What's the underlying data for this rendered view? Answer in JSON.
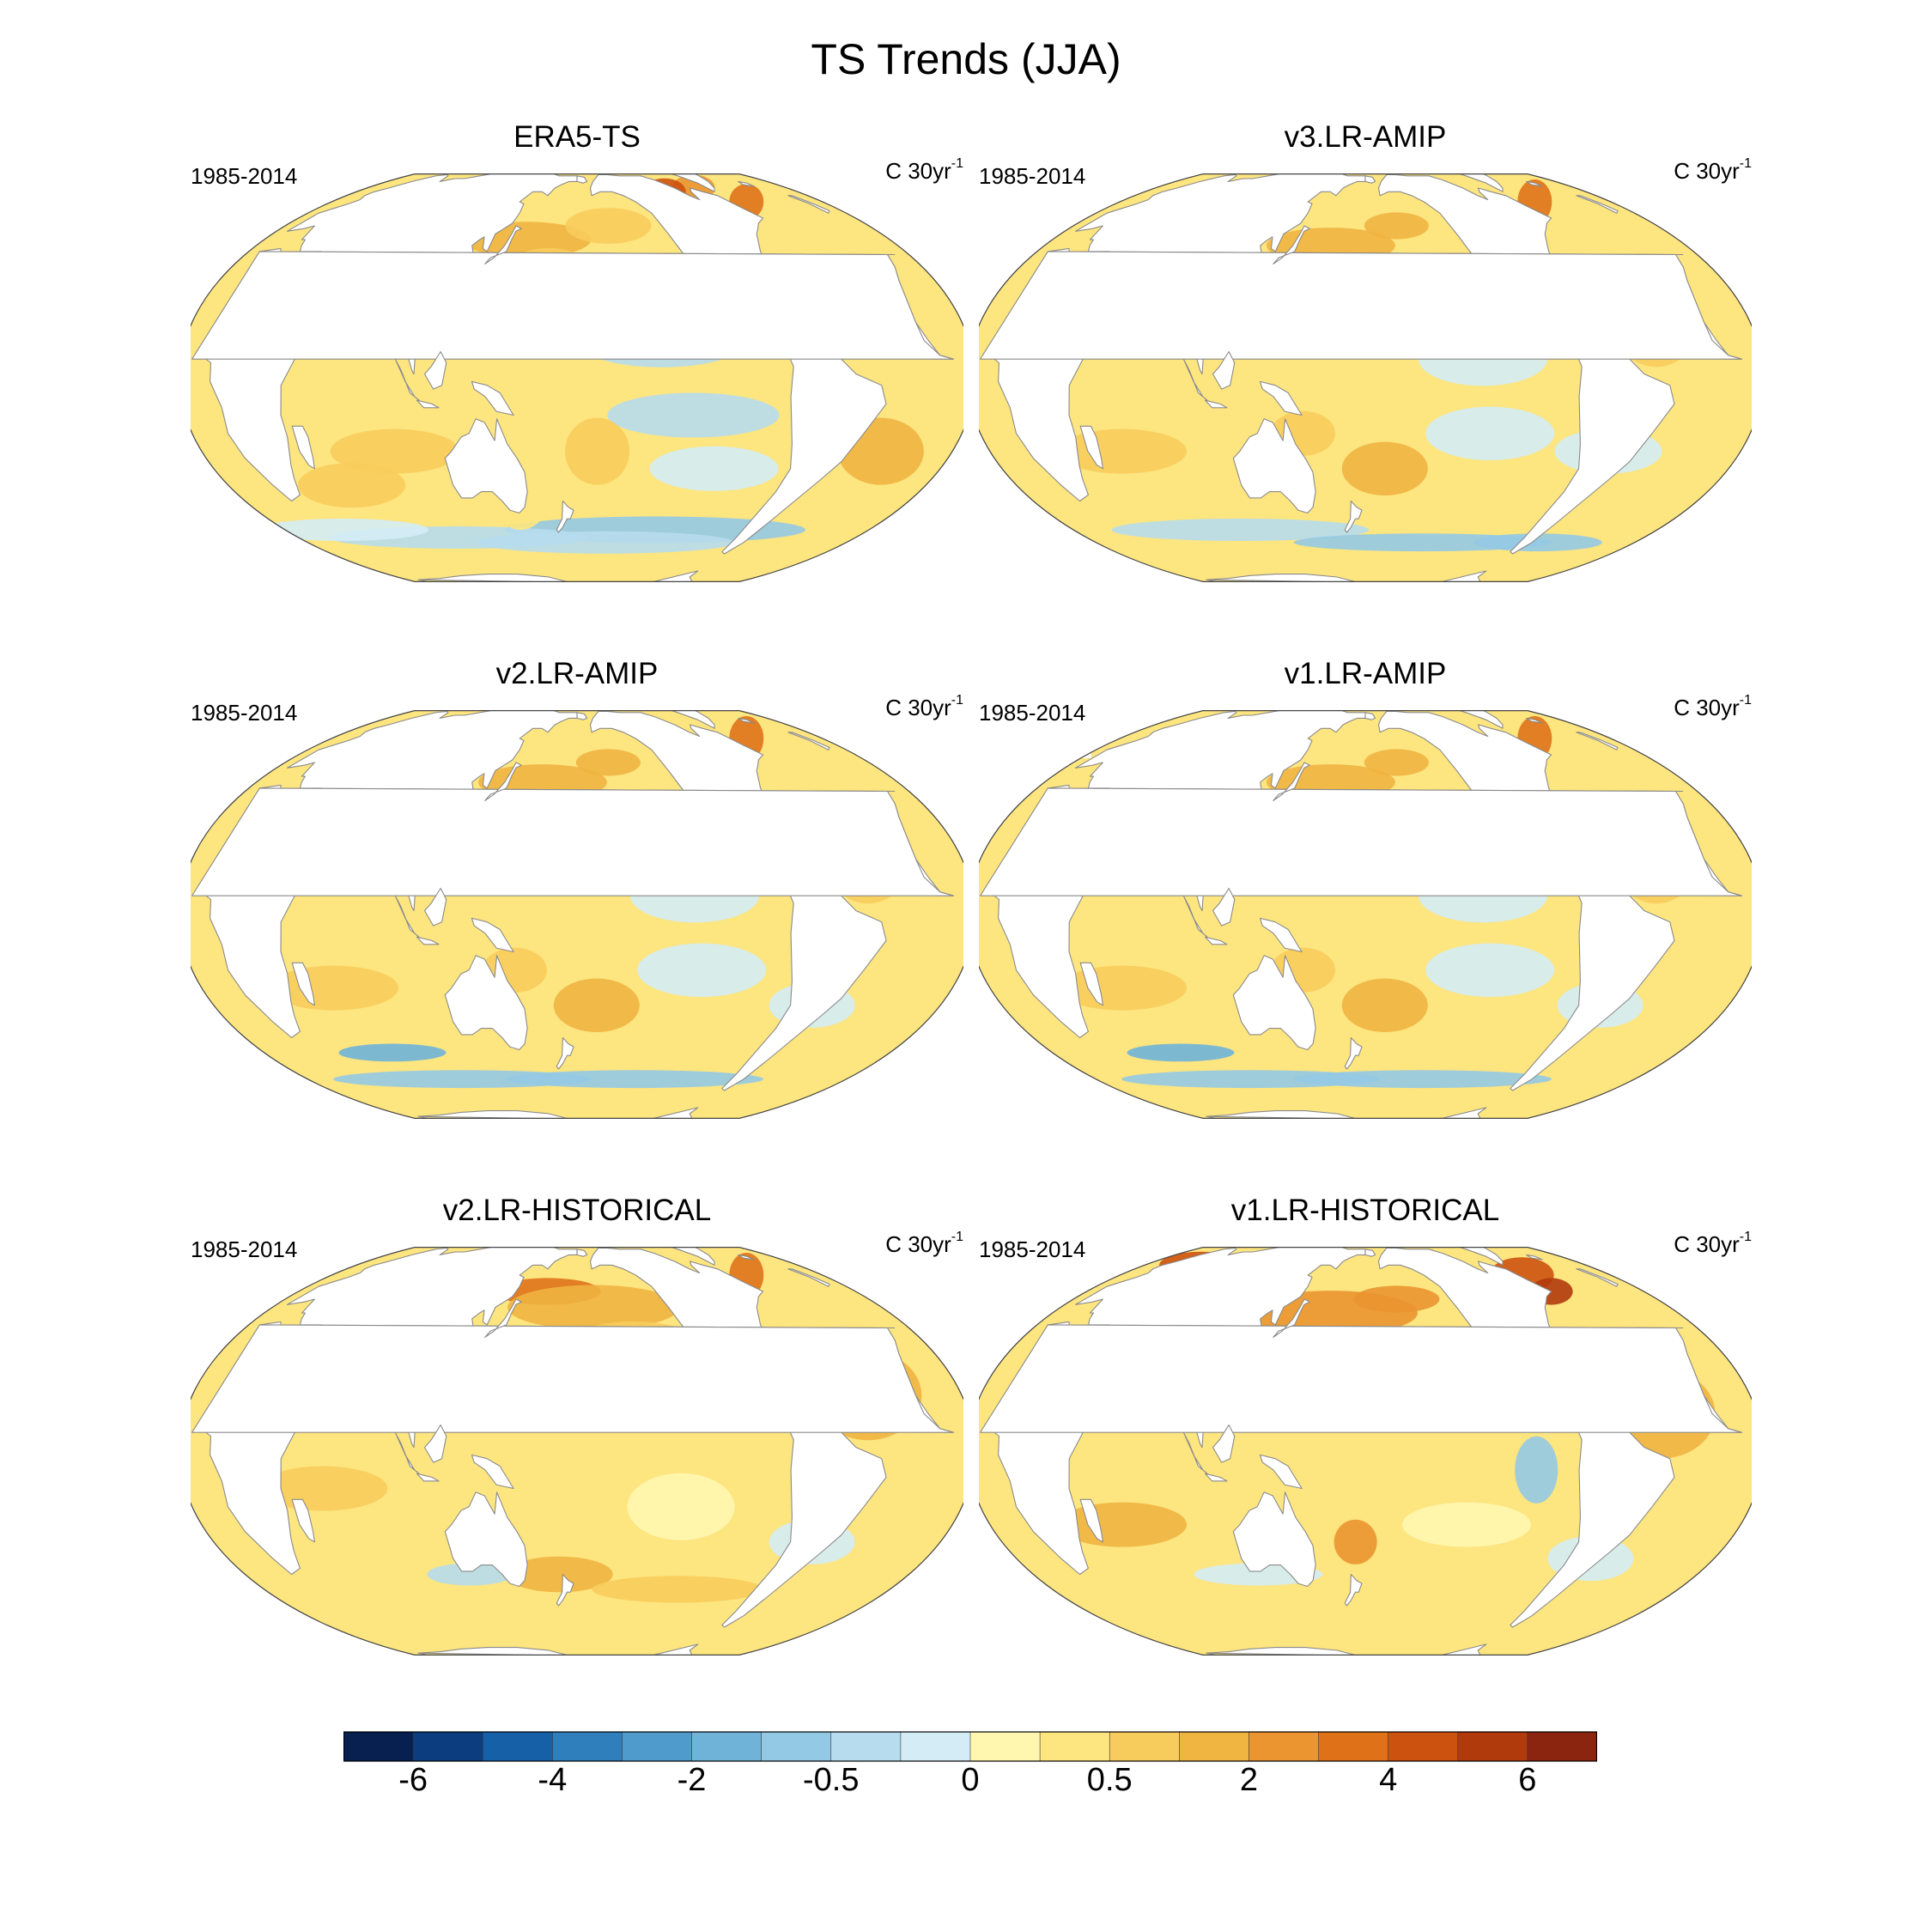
{
  "title": "TS Trends (JJA)",
  "panels": [
    {
      "title": "ERA5-TS",
      "left_text": "1985-2014",
      "units": "C 30yr",
      "units_exp": "-1"
    },
    {
      "title": "v3.LR-AMIP",
      "left_text": "1985-2014",
      "units": "C 30yr",
      "units_exp": "-1"
    },
    {
      "title": "v2.LR-AMIP",
      "left_text": "1985-2014",
      "units": "C 30yr",
      "units_exp": "-1"
    },
    {
      "title": "v1.LR-AMIP",
      "left_text": "1985-2014",
      "units": "C 30yr",
      "units_exp": "-1"
    },
    {
      "title": "v2.LR-HISTORICAL",
      "left_text": "1985-2014",
      "units": "C 30yr",
      "units_exp": "-1"
    },
    {
      "title": "v1.LR-HISTORICAL",
      "left_text": "1985-2014",
      "units": "C 30yr",
      "units_exp": "-1"
    }
  ],
  "colorbar": {
    "labels": [
      "-6",
      "-4",
      "-2",
      "-0.5",
      "0",
      "0.5",
      "2",
      "4",
      "6"
    ],
    "colors": [
      "#08204f",
      "#0c3d7e",
      "#1660a8",
      "#2e7fbb",
      "#4f9bcc",
      "#6fb3d9",
      "#93c9e4",
      "#b6dced",
      "#d4ecf5",
      "#fff7b0",
      "#fde580",
      "#f8cc5c",
      "#f0b441",
      "#ea9530",
      "#df7218",
      "#cc5210",
      "#b13a0d",
      "#8c2510"
    ]
  }
}
